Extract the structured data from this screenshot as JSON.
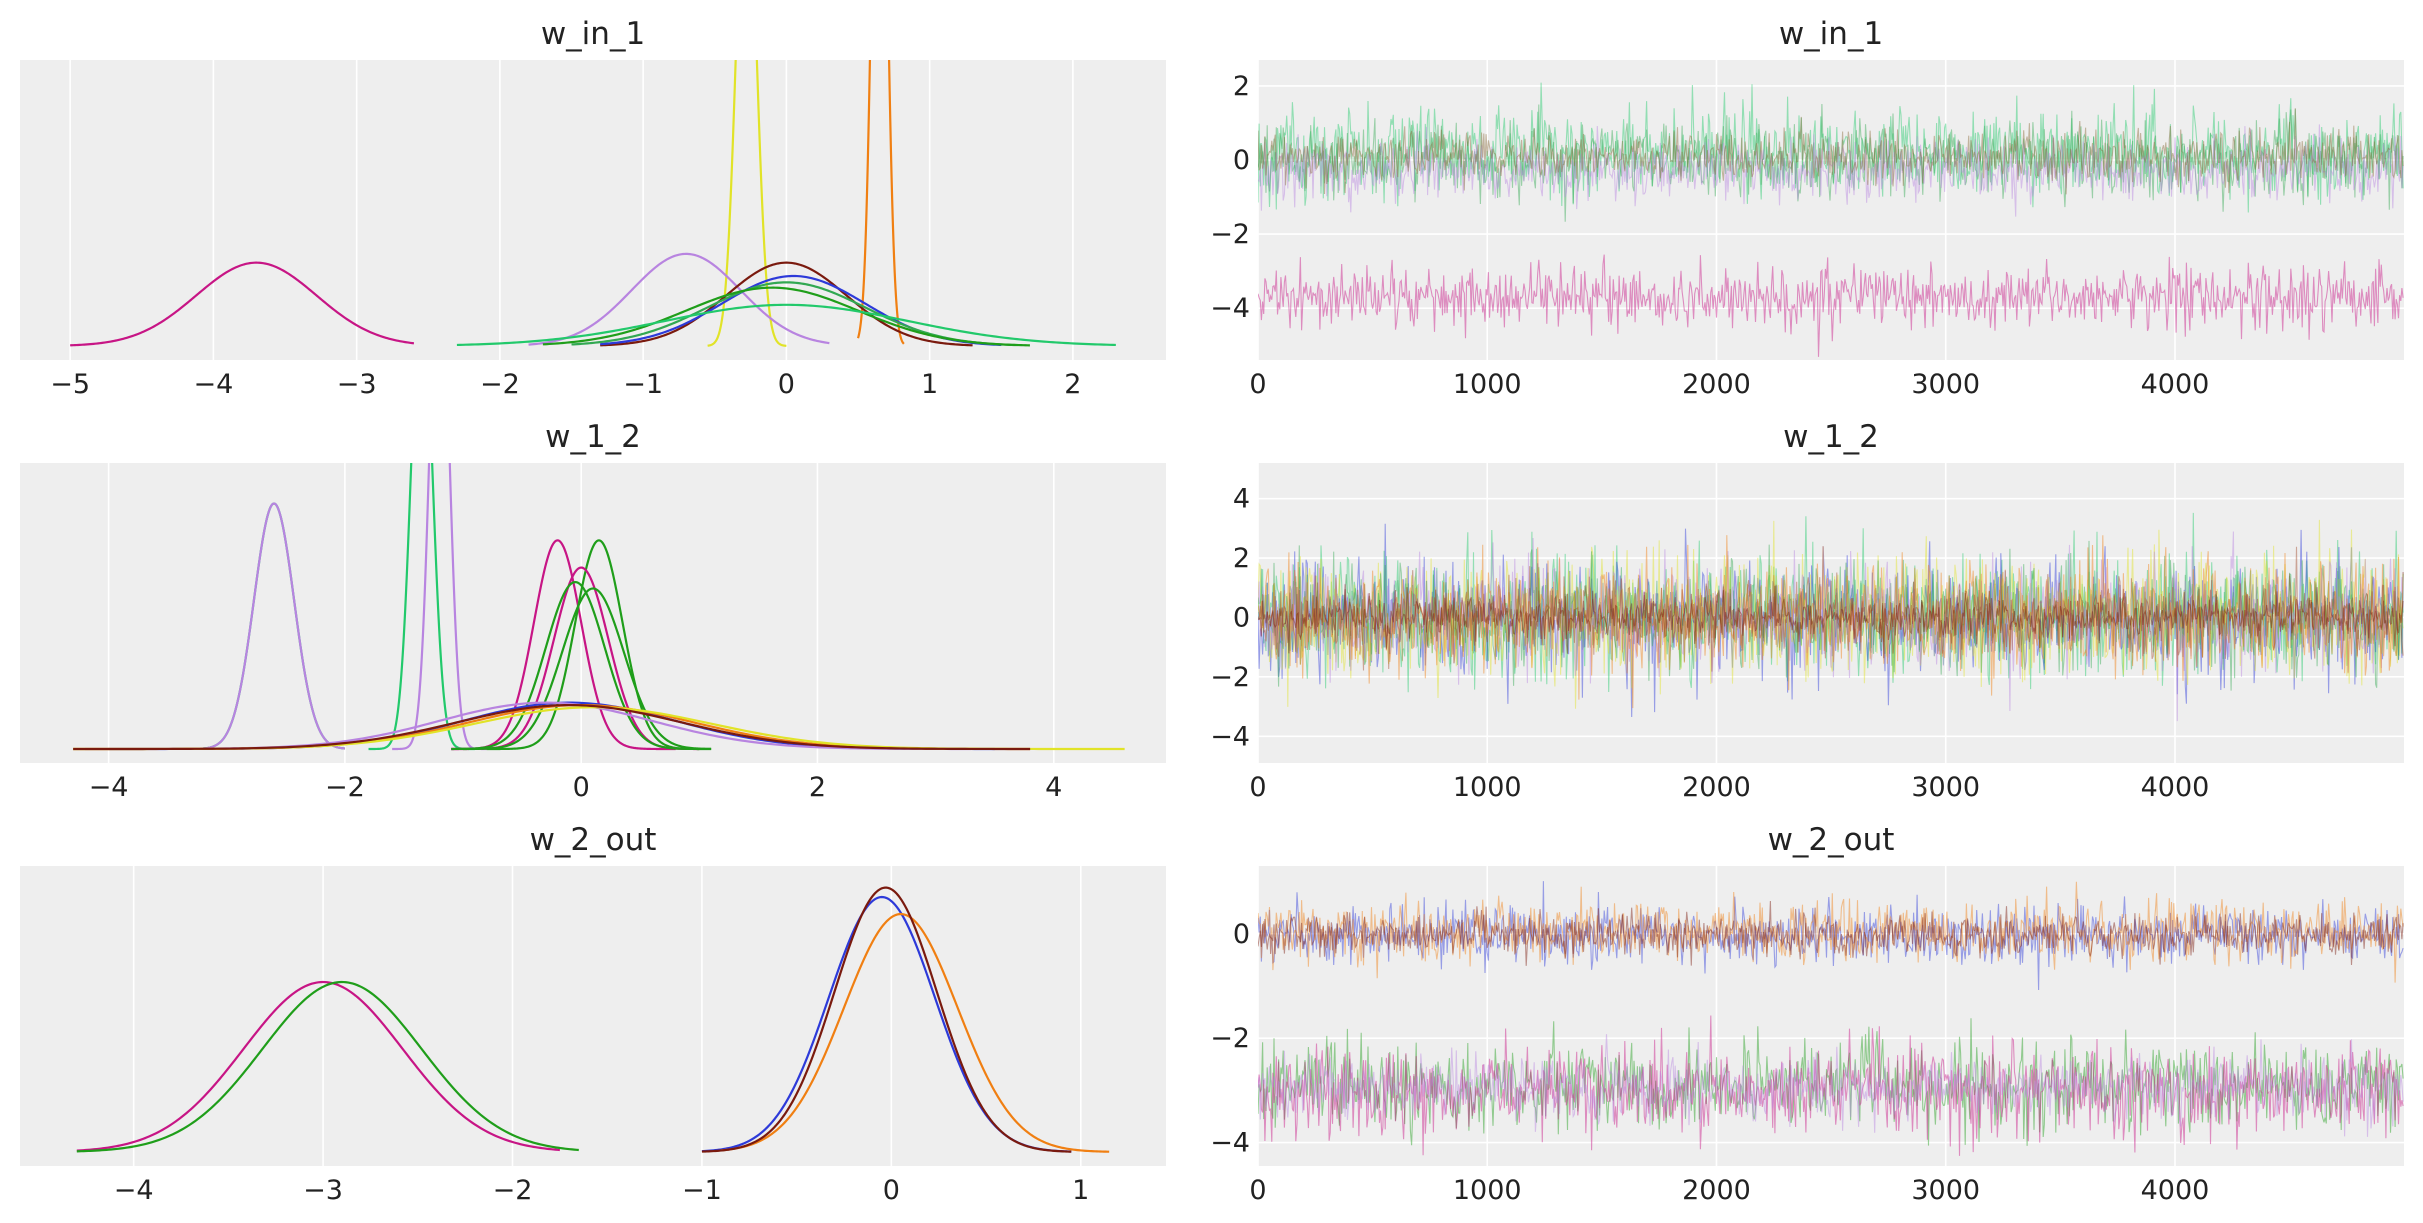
{
  "chart_data": [
    {
      "type": "line",
      "kind": "kde",
      "title": "w_in_1",
      "xlim": [
        -5.35,
        2.65
      ],
      "xticks": [
        -5,
        -4,
        -3,
        -2,
        -1,
        0,
        1,
        2
      ],
      "xtick_labels": [
        "−5",
        "−4",
        "−3",
        "−2",
        "−1",
        "0",
        "1",
        "2"
      ],
      "grid": "vertical",
      "density_ymax": 3.1,
      "series": [
        {
          "color": "#c71585",
          "mean": -3.7,
          "sd": 0.42,
          "range": [
            -5.0,
            -2.6
          ]
        },
        {
          "color": "#f07f12",
          "mean": 0.65,
          "sd": 0.05,
          "range": [
            0.5,
            0.82
          ]
        },
        {
          "color": "#e1e328",
          "mean": -0.28,
          "sd": 0.07,
          "range": [
            -0.55,
            0.0
          ]
        },
        {
          "color": "#b884e0",
          "mean": -0.7,
          "sd": 0.38,
          "range": [
            -1.8,
            0.3
          ]
        },
        {
          "color": "#7a1a0e",
          "mean": 0.0,
          "sd": 0.42,
          "range": [
            -1.3,
            1.3
          ]
        },
        {
          "color": "#2d3ad9",
          "mean": 0.05,
          "sd": 0.5,
          "range": [
            -1.3,
            1.5
          ]
        },
        {
          "color": "#32a852",
          "mean": 0.0,
          "sd": 0.55,
          "range": [
            -1.5,
            1.6
          ]
        },
        {
          "color": "#1f9e1a",
          "mean": -0.1,
          "sd": 0.6,
          "range": [
            -1.7,
            1.7
          ]
        },
        {
          "color": "#22c96b",
          "mean": 0.0,
          "sd": 0.85,
          "range": [
            -2.3,
            2.3
          ]
        }
      ]
    },
    {
      "type": "line",
      "kind": "trace",
      "title": "w_in_1",
      "xlim": [
        0,
        4999
      ],
      "ylim": [
        -5.4,
        2.7
      ],
      "xticks": [
        0,
        1000,
        2000,
        3000,
        4000
      ],
      "yticks": [
        -4,
        -2,
        0,
        2
      ],
      "ytick_labels": [
        "−4",
        "−2",
        "0",
        "2"
      ],
      "grid": "both",
      "series": [
        {
          "color": "#22c96b",
          "mean": 0.2,
          "sd": 0.6
        },
        {
          "color": "#32a852",
          "mean": 0.0,
          "sd": 0.5
        },
        {
          "color": "#b884e0",
          "mean": -0.3,
          "sd": 0.4
        },
        {
          "color": "#8a6a3a",
          "mean": 0.1,
          "sd": 0.35
        },
        {
          "color": "#c71585",
          "mean": -3.7,
          "sd": 0.42
        }
      ]
    },
    {
      "type": "line",
      "kind": "kde",
      "title": "w_1_2",
      "xlim": [
        -4.75,
        4.95
      ],
      "xticks": [
        -4,
        -2,
        0,
        2,
        4
      ],
      "xtick_labels": [
        "−4",
        "−2",
        "0",
        "2",
        "4"
      ],
      "grid": "vertical",
      "density_ymax": 2.6,
      "series": [
        {
          "color": "#22c96b",
          "mean": -2.6,
          "sd": 0.17,
          "range": [
            -3.2,
            -2.0
          ]
        },
        {
          "color": "#b884e0",
          "mean": -2.6,
          "sd": 0.17,
          "range": [
            -3.2,
            -2.0
          ]
        },
        {
          "color": "#22c96b",
          "mean": -1.35,
          "sd": 0.09,
          "range": [
            -1.8,
            -0.9
          ]
        },
        {
          "color": "#b884e0",
          "mean": -1.2,
          "sd": 0.08,
          "range": [
            -1.6,
            -0.8
          ]
        },
        {
          "color": "#c71585",
          "mean": -0.2,
          "sd": 0.2,
          "range": [
            -1.1,
            0.8
          ]
        },
        {
          "color": "#1f9e1a",
          "mean": 0.15,
          "sd": 0.2,
          "range": [
            -0.8,
            1.1
          ]
        },
        {
          "color": "#c71585",
          "mean": 0.0,
          "sd": 0.23,
          "range": [
            -1.1,
            1.0
          ]
        },
        {
          "color": "#1f9e1a",
          "mean": -0.05,
          "sd": 0.25,
          "range": [
            -1.1,
            1.0
          ]
        },
        {
          "color": "#1f9e1a",
          "mean": 0.1,
          "sd": 0.26,
          "range": [
            -1.0,
            1.1
          ]
        },
        {
          "color": "#2d3ad9",
          "mean": -0.1,
          "sd": 0.9,
          "range": [
            -4.0,
            3.5
          ]
        },
        {
          "color": "#b884e0",
          "mean": -0.3,
          "sd": 0.9,
          "range": [
            -4.2,
            3.3
          ]
        },
        {
          "color": "#f07f12",
          "mean": 0.0,
          "sd": 0.95,
          "range": [
            -4.3,
            3.8
          ]
        },
        {
          "color": "#e1e328",
          "mean": 0.1,
          "sd": 1.0,
          "range": [
            -4.3,
            4.6
          ]
        },
        {
          "color": "#7a1a0e",
          "mean": -0.1,
          "sd": 0.95,
          "range": [
            -4.3,
            3.8
          ]
        }
      ]
    },
    {
      "type": "line",
      "kind": "trace",
      "title": "w_1_2",
      "xlim": [
        0,
        4999
      ],
      "ylim": [
        -4.9,
        5.2
      ],
      "xticks": [
        0,
        1000,
        2000,
        3000,
        4000
      ],
      "yticks": [
        -4,
        -2,
        0,
        2,
        4
      ],
      "ytick_labels": [
        "−4",
        "−2",
        "0",
        "2",
        "4"
      ],
      "grid": "both",
      "series": [
        {
          "color": "#22c96b",
          "mean": 0.0,
          "sd": 1.0
        },
        {
          "color": "#2d3ad9",
          "mean": 0.0,
          "sd": 1.0
        },
        {
          "color": "#e1e328",
          "mean": 0.0,
          "sd": 1.05
        },
        {
          "color": "#32a852",
          "mean": 0.0,
          "sd": 0.9
        },
        {
          "color": "#b884e0",
          "mean": 0.0,
          "sd": 0.9
        },
        {
          "color": "#f07f12",
          "mean": 0.0,
          "sd": 0.95
        },
        {
          "color": "#a04a2a",
          "mean": 0.0,
          "sd": 0.6
        },
        {
          "color": "#7a1a0e",
          "mean": 0.0,
          "sd": 0.35
        }
      ]
    },
    {
      "type": "line",
      "kind": "kde",
      "title": "w_2_out",
      "xlim": [
        -4.6,
        1.45
      ],
      "xticks": [
        -4,
        -3,
        -2,
        -1,
        0,
        1
      ],
      "xtick_labels": [
        "−4",
        "−3",
        "−2",
        "−1",
        "0",
        "1"
      ],
      "grid": "vertical",
      "density_ymax": 1.52,
      "series": [
        {
          "color": "#c71585",
          "mean": -3.0,
          "sd": 0.42,
          "range": [
            -4.3,
            -1.75
          ]
        },
        {
          "color": "#1f9e1a",
          "mean": -2.9,
          "sd": 0.42,
          "range": [
            -4.3,
            -1.65
          ]
        },
        {
          "color": "#2d3ad9",
          "mean": -0.05,
          "sd": 0.28,
          "range": [
            -1.0,
            0.95
          ]
        },
        {
          "color": "#f07f12",
          "mean": 0.05,
          "sd": 0.3,
          "range": [
            -0.9,
            1.15
          ]
        },
        {
          "color": "#7a1a0e",
          "mean": -0.03,
          "sd": 0.27,
          "range": [
            -1.0,
            0.95
          ]
        }
      ]
    },
    {
      "type": "line",
      "kind": "trace",
      "title": "w_2_out",
      "xlim": [
        0,
        4999
      ],
      "ylim": [
        -4.45,
        1.3
      ],
      "xticks": [
        0,
        1000,
        2000,
        3000,
        4000
      ],
      "yticks": [
        -4,
        -2,
        0
      ],
      "ytick_labels": [
        "−4",
        "−2",
        "0"
      ],
      "grid": "both",
      "series": [
        {
          "color": "#2d3ad9",
          "mean": 0.0,
          "sd": 0.28
        },
        {
          "color": "#f07f12",
          "mean": 0.05,
          "sd": 0.3
        },
        {
          "color": "#7a1a0e",
          "mean": -0.02,
          "sd": 0.2
        },
        {
          "color": "#1f9e1a",
          "mean": -2.9,
          "sd": 0.42
        },
        {
          "color": "#c71585",
          "mean": -3.0,
          "sd": 0.42
        },
        {
          "color": "#b884e0",
          "mean": -2.95,
          "sd": 0.3
        }
      ]
    }
  ]
}
